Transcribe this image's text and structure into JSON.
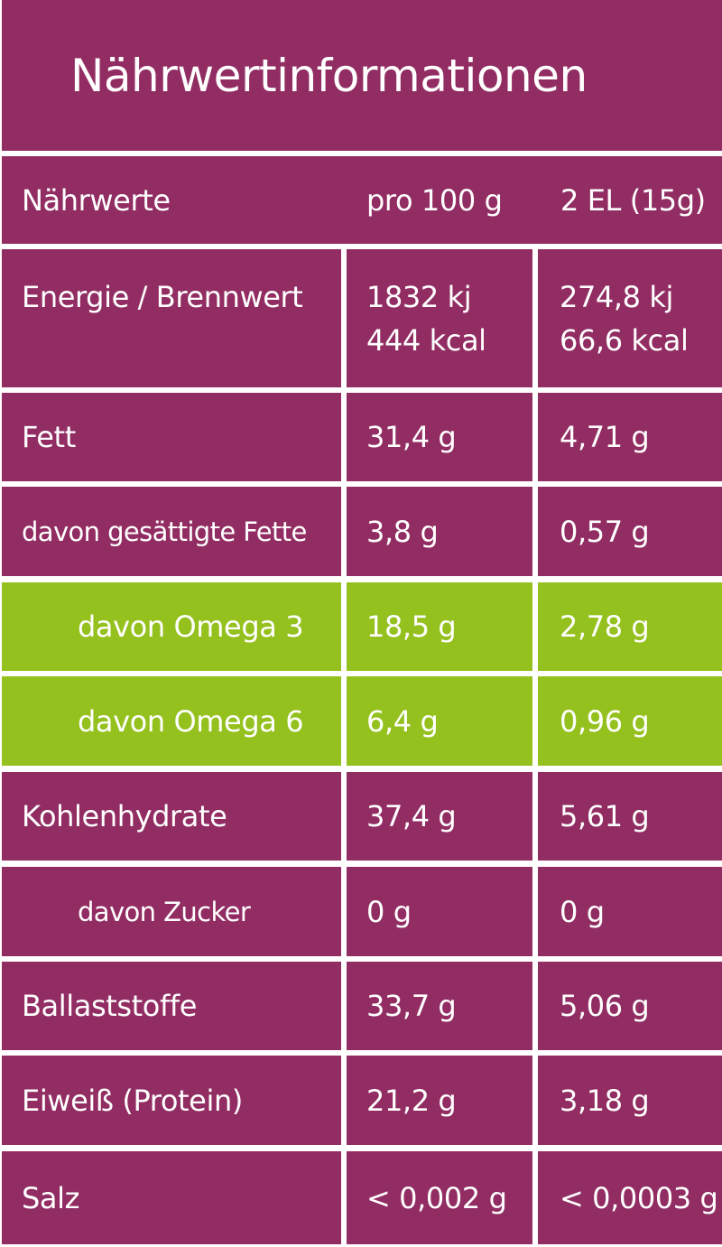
{
  "title": "Nährwertinformationen",
  "header": {
    "col_name": "Nährwerte",
    "col_per100": "pro 100 g",
    "col_serving": "2 EL (15g)"
  },
  "colors": {
    "primary": "#922d63",
    "highlight": "#95c11f",
    "text": "#ffffff",
    "divider": "#ffffff"
  },
  "rows": [
    {
      "name": "Energie / Brennwert",
      "per100_line1": "1832 kj",
      "per100_line2": "444 kcal",
      "serving_line1": "274,8 kj",
      "serving_line2": "66,6 kcal",
      "highlight": false,
      "indent": false
    },
    {
      "name": "Fett",
      "per100": "31,4 g",
      "serving": "4,71 g",
      "highlight": false,
      "indent": false
    },
    {
      "name": "davon gesättigte Fette",
      "per100": "3,8 g",
      "serving": "0,57 g",
      "highlight": false,
      "indent": false
    },
    {
      "name": "davon Omega 3",
      "per100": "18,5 g",
      "serving": "2,78 g",
      "highlight": true,
      "indent": true
    },
    {
      "name": "davon Omega 6",
      "per100": "6,4 g",
      "serving": "0,96 g",
      "highlight": true,
      "indent": true
    },
    {
      "name": "Kohlenhydrate",
      "per100": "37,4 g",
      "serving": "5,61 g",
      "highlight": false,
      "indent": false
    },
    {
      "name": "davon Zucker",
      "per100": "0 g",
      "serving": "0 g",
      "highlight": false,
      "indent": true
    },
    {
      "name": "Ballaststoffe",
      "per100": "33,7 g",
      "serving": "5,06 g",
      "highlight": false,
      "indent": false
    },
    {
      "name": "Eiweiß (Protein)",
      "per100": "21,2 g",
      "serving": "3,18 g",
      "highlight": false,
      "indent": false
    },
    {
      "name": "Salz",
      "per100": "< 0,002 g",
      "serving": "< 0,0003 g",
      "highlight": false,
      "indent": false
    }
  ]
}
